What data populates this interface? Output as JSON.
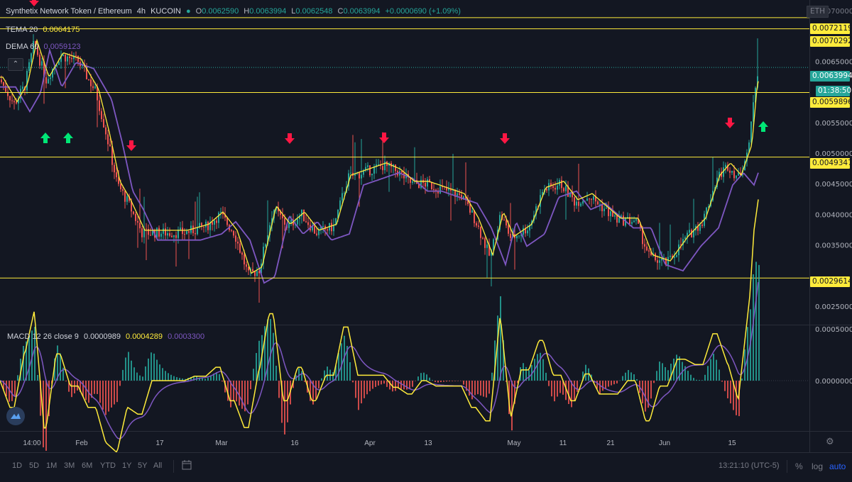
{
  "header": {
    "title": "Synthetix Network Token / Ethereum",
    "interval": "4h",
    "exchange": "KUCOIN",
    "ohlc": {
      "o_label": "O",
      "o": "0.0062590",
      "h_label": "H",
      "h": "0.0063994",
      "l_label": "L",
      "l": "0.0062548",
      "c_label": "C",
      "c": "0.0063994",
      "change": "+0.0000690 (+1.09%)"
    },
    "symbol_badge": "ETH"
  },
  "indicators": {
    "tema": {
      "label": "TEMA 20",
      "value": "0.0064175",
      "color": "#ffeb3b"
    },
    "dema": {
      "label": "DEMA 60",
      "value": "0.0059123",
      "color": "#7e57c2"
    },
    "macd": {
      "label": "MACD 12 26 close 9",
      "v1": "0.0000989",
      "v2": "0.0004289",
      "v3": "0.0003300",
      "macd_color": "#ffeb3b",
      "signal_color": "#7e57c2"
    }
  },
  "colors": {
    "up": "#26a69a",
    "down": "#ef5350",
    "bg": "#131722",
    "grid": "#1e222d",
    "level": "#ffeb3b",
    "arrow_up": "#00e676",
    "arrow_down": "#ff1744"
  },
  "price_axis": {
    "ticks": [
      "0.0065000",
      "0.0055000",
      "0.0050000",
      "0.0045000",
      "0.0040000",
      "0.0035000",
      "0.0025000"
    ],
    "macd_ticks": [
      "0.0005000",
      "0.0000000"
    ],
    "top_tick": "0.0070000",
    "current_price": "0.0063994",
    "countdown": "01:38:50",
    "levels": [
      "0.0072119",
      "0.0070292",
      "0.0059896",
      "0.0049347",
      "0.0029614"
    ]
  },
  "time_axis": {
    "labels": [
      "14:00",
      "Feb",
      "17",
      "Mar",
      "16",
      "Apr",
      "13",
      "May",
      "11",
      "21",
      "Jun",
      "15"
    ]
  },
  "bottom": {
    "timeframes": [
      "1D",
      "5D",
      "1M",
      "3M",
      "6M",
      "YTD",
      "1Y",
      "5Y",
      "All"
    ],
    "clock": "13:21:10 (UTC-5)",
    "percent": "%",
    "log": "log",
    "auto": "auto"
  },
  "chart_data": {
    "type": "line",
    "title": "Synthetix Network Token / Ethereum 4h KUCOIN",
    "x": [
      "14:00",
      "Feb",
      "17",
      "Mar",
      "16",
      "Apr",
      "13",
      "May",
      "11",
      "21",
      "Jun",
      "15"
    ],
    "series": [
      {
        "name": "TEMA 20",
        "values": [
          0.006,
          0.0064,
          0.0042,
          0.0038,
          0.004,
          0.0048,
          0.0044,
          0.0036,
          0.0044,
          0.004,
          0.0033,
          0.0048
        ]
      },
      {
        "name": "DEMA 60",
        "values": [
          0.0057,
          0.0062,
          0.0046,
          0.0036,
          0.0038,
          0.0046,
          0.0044,
          0.0036,
          0.0043,
          0.0041,
          0.0033,
          0.0046
        ]
      }
    ],
    "ylim": [
      0.0022,
      0.0075
    ],
    "horizontal_levels": [
      0.0072119,
      0.0070292,
      0.0059896,
      0.0049347,
      0.0029614
    ],
    "current_price": 0.0063994
  }
}
